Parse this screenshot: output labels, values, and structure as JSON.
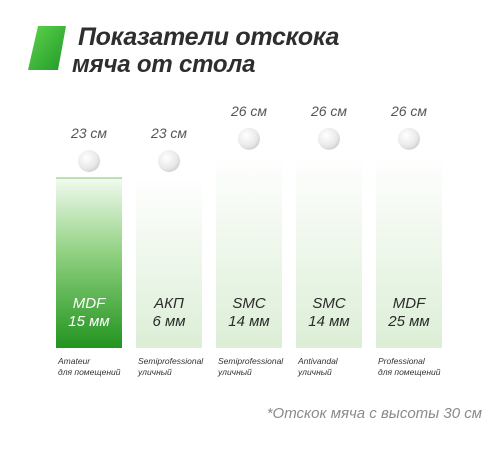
{
  "header": {
    "title": "Показатели отскока",
    "subtitle": "мяча от стола"
  },
  "colors": {
    "accent": "#2aa02a",
    "accent_light": "#e6f2e0",
    "ball": "#ececec"
  },
  "chart_data": {
    "type": "bar",
    "title": "Показатели отскока мяча от стола",
    "unit": "см",
    "value_unit": "мм",
    "ylim": [
      0,
      30
    ],
    "items": [
      {
        "bounce_label": "23 см",
        "bounce": 23,
        "material": "MDF",
        "thickness_label": "15 мм",
        "thickness": 15,
        "line1": "Amateur",
        "line2": "для помещений",
        "highlight": true
      },
      {
        "bounce_label": "23 см",
        "bounce": 23,
        "material": "АКП",
        "thickness_label": "6 мм",
        "thickness": 6,
        "line1": "Semiprofessional",
        "line2": "уличный",
        "highlight": false
      },
      {
        "bounce_label": "26 см",
        "bounce": 26,
        "material": "SMC",
        "thickness_label": "14 мм",
        "thickness": 14,
        "line1": "Semiprofessional",
        "line2": "уличный",
        "highlight": false
      },
      {
        "bounce_label": "26 см",
        "bounce": 26,
        "material": "SMC",
        "thickness_label": "14 мм",
        "thickness": 14,
        "line1": "Antivandal",
        "line2": "уличный",
        "highlight": false
      },
      {
        "bounce_label": "26 см",
        "bounce": 26,
        "material": "MDF",
        "thickness_label": "25 мм",
        "thickness": 25,
        "line1": "Professional",
        "line2": "для помещений",
        "highlight": false
      }
    ],
    "footnote": "*Отскок мяча с высоты 30 см"
  }
}
